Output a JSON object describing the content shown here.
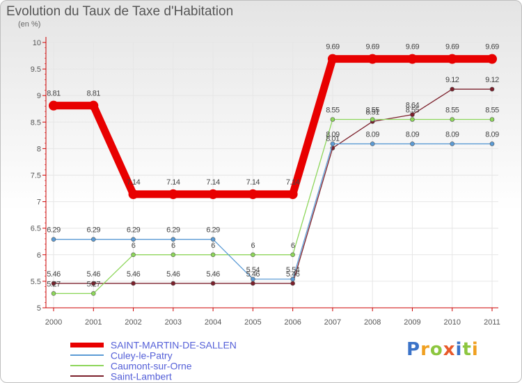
{
  "chart_data": {
    "type": "line",
    "title": "Evolution du Taux de Taxe d'Habitation",
    "ylabel": "(en %)",
    "xlabel": "",
    "ylim": [
      5,
      10
    ],
    "yticks": [
      "5",
      "5.5",
      "6",
      "6.5",
      "7",
      "7.5",
      "8",
      "8.5",
      "9",
      "9.5",
      "10"
    ],
    "x": [
      "2000",
      "2001",
      "2002",
      "2003",
      "2004",
      "2005",
      "2006",
      "2007",
      "2008",
      "2009",
      "2010",
      "2011"
    ],
    "series": [
      {
        "name": "SAINT-MARTIN-DE-SALLEN",
        "color": "#e80000",
        "values": [
          8.81,
          8.81,
          7.14,
          7.14,
          7.14,
          7.14,
          7.14,
          9.69,
          9.69,
          9.69,
          9.69,
          9.69
        ],
        "labels": [
          "8.81",
          "8.81",
          "7.14",
          "7.14",
          "7.14",
          "7.14",
          "7.14",
          "9.69",
          "9.69",
          "9.69",
          "9.69",
          "9.69"
        ]
      },
      {
        "name": "Culey-le-Patry",
        "color": "#5b9bd5",
        "values": [
          6.29,
          6.29,
          6.29,
          6.29,
          6.29,
          5.54,
          5.54,
          8.09,
          8.09,
          8.09,
          8.09,
          8.09
        ],
        "labels": [
          "6.29",
          "6.29",
          "6.29",
          "6.29",
          "6.29",
          "5.54",
          "5.54",
          "8.09",
          "8.09",
          "8.09",
          "8.09",
          "8.09"
        ]
      },
      {
        "name": "Caumont-sur-Orne",
        "color": "#8dd65a",
        "values": [
          5.27,
          5.27,
          6,
          6,
          6,
          6,
          6,
          8.55,
          8.55,
          8.55,
          8.55,
          8.55
        ],
        "labels": [
          "5.27",
          "5.27",
          "6",
          "6",
          "6",
          "6",
          "6",
          "8.55",
          "8.55",
          "8.55",
          "8.55",
          "8.55"
        ]
      },
      {
        "name": "Saint-Lambert",
        "color": "#7b1f2a",
        "values": [
          5.46,
          5.46,
          5.46,
          5.46,
          5.46,
          5.46,
          5.46,
          8.01,
          8.51,
          8.64,
          9.12,
          9.12
        ],
        "labels": [
          "5.46",
          "5.46",
          "5.46",
          "5.46",
          "5.46",
          "5.46",
          "5.46",
          "8.01",
          "8.51",
          "8.64",
          "9.12",
          "9.12"
        ]
      }
    ],
    "legend_position": "bottom-left"
  },
  "brand": {
    "text": "Proxiti",
    "letters": [
      {
        "char": "P",
        "color": "#3b73c8"
      },
      {
        "char": "r",
        "color": "#f0a020"
      },
      {
        "char": "o",
        "color": "#8cc63f"
      },
      {
        "char": "x",
        "color": "#e85a2a"
      },
      {
        "char": "i",
        "color": "#3b73c8"
      },
      {
        "char": "t",
        "color": "#8cc63f"
      },
      {
        "char": "i",
        "color": "#f0a020"
      }
    ]
  }
}
